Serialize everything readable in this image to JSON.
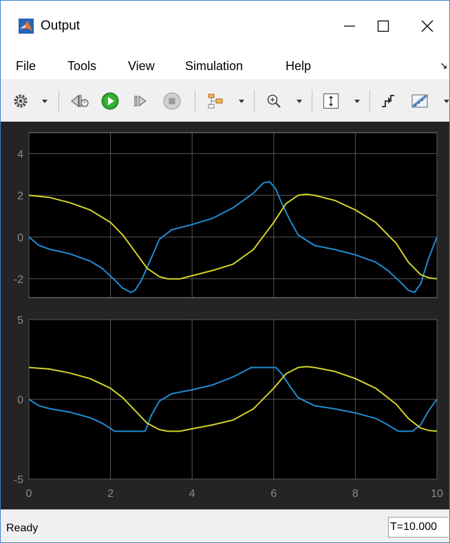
{
  "window": {
    "title": "Output"
  },
  "menu": {
    "items": [
      "File",
      "Tools",
      "View",
      "Simulation",
      "Help"
    ]
  },
  "toolbar": {
    "buttons": [
      "settings-icon",
      "step-back-icon",
      "run-icon",
      "step-forward-icon",
      "stop-icon",
      "signal-select-icon",
      "zoom-icon",
      "fit-axes-icon",
      "triggers-icon",
      "measure-icon"
    ]
  },
  "status": {
    "text": "Ready",
    "time": "T=10.000"
  },
  "colors": {
    "blue": "#1f8ed6",
    "yellow": "#d5d52a",
    "axes_bg": "#000000",
    "figure_bg": "#242424",
    "grid": "#5a5a5a",
    "tick": "#8c8c8c"
  },
  "chart_data": [
    {
      "type": "line",
      "xlim": [
        0,
        10
      ],
      "ylim": [
        -2.9,
        5
      ],
      "yticks": [
        4,
        2,
        0,
        -2
      ],
      "xticks": [
        0,
        2,
        4,
        6,
        8,
        10
      ],
      "show_xticklabels": false,
      "grid": true,
      "series": [
        {
          "color": "blue",
          "x": [
            0,
            0.25,
            0.5,
            1,
            1.5,
            1.8,
            2.1,
            2.3,
            2.5,
            2.6,
            2.75,
            3,
            3.2,
            3.5,
            4,
            4.5,
            5,
            5.5,
            5.75,
            5.9,
            6.05,
            6.2,
            6.4,
            6.6,
            7,
            7.5,
            8,
            8.5,
            8.8,
            9.1,
            9.3,
            9.45,
            9.6,
            9.8,
            10
          ],
          "y": [
            0,
            -0.4,
            -0.58,
            -0.8,
            -1.15,
            -1.5,
            -2.05,
            -2.45,
            -2.65,
            -2.55,
            -2.1,
            -1.0,
            -0.1,
            0.35,
            0.6,
            0.9,
            1.4,
            2.1,
            2.6,
            2.65,
            2.3,
            1.6,
            0.8,
            0.1,
            -0.4,
            -0.6,
            -0.85,
            -1.2,
            -1.6,
            -2.15,
            -2.55,
            -2.65,
            -2.25,
            -1.0,
            0
          ]
        },
        {
          "color": "yellow",
          "x": [
            0,
            0.5,
            1,
            1.5,
            2,
            2.3,
            2.6,
            2.9,
            3.2,
            3.4,
            3.7,
            4,
            4.5,
            5,
            5.5,
            6,
            6.3,
            6.6,
            6.8,
            7,
            7.5,
            8,
            8.5,
            9,
            9.3,
            9.6,
            9.8,
            10
          ],
          "y": [
            2,
            1.9,
            1.65,
            1.3,
            0.7,
            0.1,
            -0.7,
            -1.5,
            -1.9,
            -2,
            -2,
            -1.85,
            -1.6,
            -1.3,
            -0.6,
            0.7,
            1.6,
            2.0,
            2.05,
            2.0,
            1.75,
            1.3,
            0.7,
            -0.3,
            -1.2,
            -1.8,
            -1.95,
            -2
          ]
        }
      ]
    },
    {
      "type": "line",
      "xlim": [
        0,
        10
      ],
      "ylim": [
        -5,
        5
      ],
      "yticks": [
        5,
        0,
        -5
      ],
      "xticks": [
        0,
        2,
        4,
        6,
        8,
        10
      ],
      "show_xticklabels": true,
      "grid": true,
      "series": [
        {
          "color": "blue",
          "x": [
            0,
            0.25,
            0.5,
            1,
            1.5,
            1.8,
            2.1,
            2.5,
            2.85,
            3,
            3.2,
            3.5,
            4,
            4.5,
            5,
            5.3,
            5.45,
            6.05,
            6.2,
            6.4,
            6.6,
            7,
            7.5,
            8,
            8.5,
            8.8,
            9.05,
            9.4,
            9.6,
            9.8,
            10
          ],
          "y": [
            0,
            -0.4,
            -0.58,
            -0.8,
            -1.15,
            -1.5,
            -2,
            -2,
            -2,
            -1.0,
            -0.1,
            0.35,
            0.6,
            0.9,
            1.4,
            1.8,
            2,
            2,
            1.6,
            0.8,
            0.1,
            -0.4,
            -0.6,
            -0.85,
            -1.2,
            -1.6,
            -2,
            -2,
            -1.6,
            -0.7,
            0
          ]
        },
        {
          "color": "yellow",
          "x": [
            0,
            0.5,
            1,
            1.5,
            2,
            2.3,
            2.6,
            2.9,
            3.2,
            3.4,
            3.7,
            4,
            4.5,
            5,
            5.5,
            6,
            6.3,
            6.6,
            6.8,
            7,
            7.5,
            8,
            8.5,
            9,
            9.3,
            9.6,
            9.8,
            10
          ],
          "y": [
            2,
            1.9,
            1.65,
            1.3,
            0.7,
            0.1,
            -0.7,
            -1.5,
            -1.9,
            -2,
            -2,
            -1.85,
            -1.6,
            -1.3,
            -0.6,
            0.7,
            1.6,
            2.0,
            2.05,
            2.0,
            1.75,
            1.3,
            0.7,
            -0.3,
            -1.2,
            -1.8,
            -1.95,
            -2
          ]
        }
      ]
    }
  ]
}
